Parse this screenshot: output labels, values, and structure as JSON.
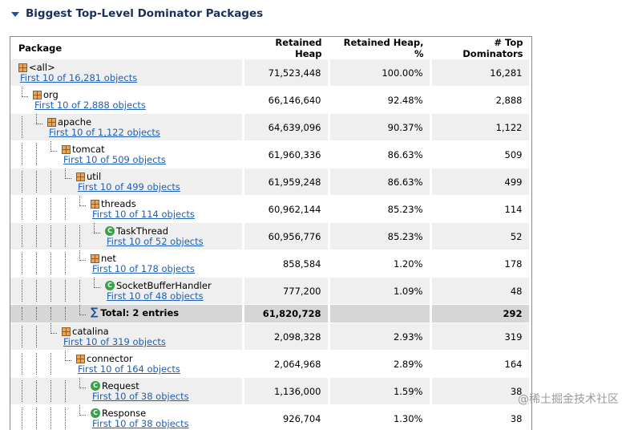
{
  "section": {
    "title": "Biggest Top-Level Dominator Packages"
  },
  "columns": {
    "package": "Package",
    "retained_heap": "Retained Heap",
    "retained_pct": "Retained Heap, %",
    "top_dominators": "# Top Dominators"
  },
  "rows": [
    {
      "name": "<all>",
      "icon": "package-icon",
      "link": "First 10 of 16,281 objects",
      "heap": "71,523,448",
      "pct": "100.00%",
      "count": "16,281"
    },
    {
      "name": "org",
      "icon": "package-icon",
      "link": "First 10 of 2,888 objects",
      "heap": "66,146,640",
      "pct": "92.48%",
      "count": "2,888"
    },
    {
      "name": "apache",
      "icon": "package-icon",
      "link": "First 10 of 1,122 objects",
      "heap": "64,639,096",
      "pct": "90.37%",
      "count": "1,122"
    },
    {
      "name": "tomcat",
      "icon": "package-icon",
      "link": "First 10 of 509 objects",
      "heap": "61,960,336",
      "pct": "86.63%",
      "count": "509"
    },
    {
      "name": "util",
      "icon": "package-icon",
      "link": "First 10 of 499 objects",
      "heap": "61,959,248",
      "pct": "86.63%",
      "count": "499"
    },
    {
      "name": "threads",
      "icon": "package-icon",
      "link": "First 10 of 114 objects",
      "heap": "60,962,144",
      "pct": "85.23%",
      "count": "114"
    },
    {
      "name": "TaskThread",
      "icon": "class-icon",
      "link": "First 10 of 52 objects",
      "heap": "60,956,776",
      "pct": "85.23%",
      "count": "52"
    },
    {
      "name": "net",
      "icon": "package-icon",
      "link": "First 10 of 178 objects",
      "heap": "858,584",
      "pct": "1.20%",
      "count": "178"
    },
    {
      "name": "SocketBufferHandler",
      "icon": "class-icon",
      "link": "First 10 of 48 objects",
      "heap": "777,200",
      "pct": "1.09%",
      "count": "48"
    },
    {
      "name": "Total: 2 entries",
      "icon": "sigma-icon",
      "link": "",
      "heap": "61,820,728",
      "pct": "",
      "count": "292"
    },
    {
      "name": "catalina",
      "icon": "package-icon",
      "link": "First 10 of 319 objects",
      "heap": "2,098,328",
      "pct": "2.93%",
      "count": "319"
    },
    {
      "name": "connector",
      "icon": "package-icon",
      "link": "First 10 of 164 objects",
      "heap": "2,064,968",
      "pct": "2.89%",
      "count": "164"
    },
    {
      "name": "Request",
      "icon": "class-icon",
      "link": "First 10 of 38 objects",
      "heap": "1,136,000",
      "pct": "1.59%",
      "count": "38"
    },
    {
      "name": "Response",
      "icon": "class-icon",
      "link": "First 10 of 38 objects",
      "heap": "926,704",
      "pct": "1.30%",
      "count": "38"
    }
  ],
  "watermark": "@稀土掘金技术社区"
}
